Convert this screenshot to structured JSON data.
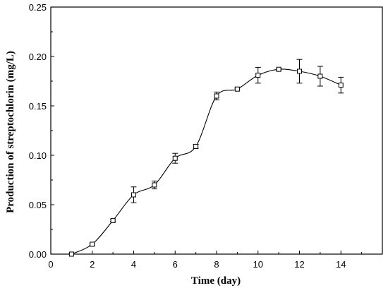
{
  "chart_data": {
    "type": "scatter",
    "title": "",
    "xlabel": "Time (day)",
    "ylabel": "Production of streptochlorin (mg/L)",
    "xlim": [
      0,
      16
    ],
    "ylim": [
      0,
      0.25
    ],
    "xticks": [
      0,
      2,
      4,
      6,
      8,
      10,
      12,
      14
    ],
    "yticks": [
      0.0,
      0.05,
      0.1,
      0.15,
      0.2,
      0.25
    ],
    "x_tick_labels": [
      "0",
      "2",
      "4",
      "6",
      "8",
      "10",
      "12",
      "14"
    ],
    "y_tick_labels": [
      "0.00",
      "0.05",
      "0.10",
      "0.15",
      "0.20",
      "0.25"
    ],
    "grid": false,
    "legend": "none",
    "marker": "open-square",
    "smooth_line": true,
    "series": [
      {
        "x": [
          1,
          2,
          3,
          4,
          5,
          6,
          7,
          8,
          9,
          10,
          11,
          12,
          13,
          14
        ],
        "y": [
          0.0,
          0.01,
          0.034,
          0.06,
          0.07,
          0.097,
          0.109,
          0.16,
          0.167,
          0.181,
          0.187,
          0.185,
          0.18,
          0.171
        ],
        "error": [
          0.0,
          0.001,
          0.001,
          0.008,
          0.004,
          0.005,
          0.002,
          0.004,
          0.001,
          0.008,
          0.001,
          0.012,
          0.01,
          0.008
        ]
      }
    ]
  }
}
